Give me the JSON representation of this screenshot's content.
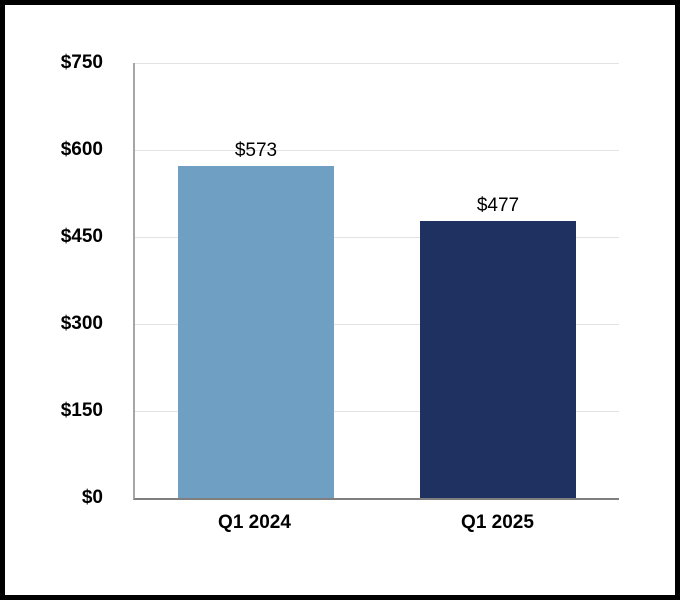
{
  "window": {
    "background_color": "#ffffff",
    "frame_border_color": "#000000"
  },
  "chart_data": {
    "type": "bar",
    "title": "",
    "xlabel": "",
    "ylabel": "",
    "categories": [
      "Q1 2024",
      "Q1 2025"
    ],
    "values": [
      573,
      477
    ],
    "data_labels": [
      "$573",
      "$477"
    ],
    "bar_colors": [
      "#6FA0C3",
      "#1E3160"
    ],
    "ylim": [
      0,
      750
    ],
    "yticks": [
      0,
      150,
      300,
      450,
      600,
      750
    ],
    "ytick_labels": [
      "$0",
      "$150",
      "$300",
      "$450",
      "$600",
      "$750"
    ],
    "grid": true,
    "gridline_color": "#E3E3E3",
    "y_axis_line_color": "#A6A6A6",
    "x_axis_line_color": "#7F7F7F",
    "legend_position": "none"
  }
}
